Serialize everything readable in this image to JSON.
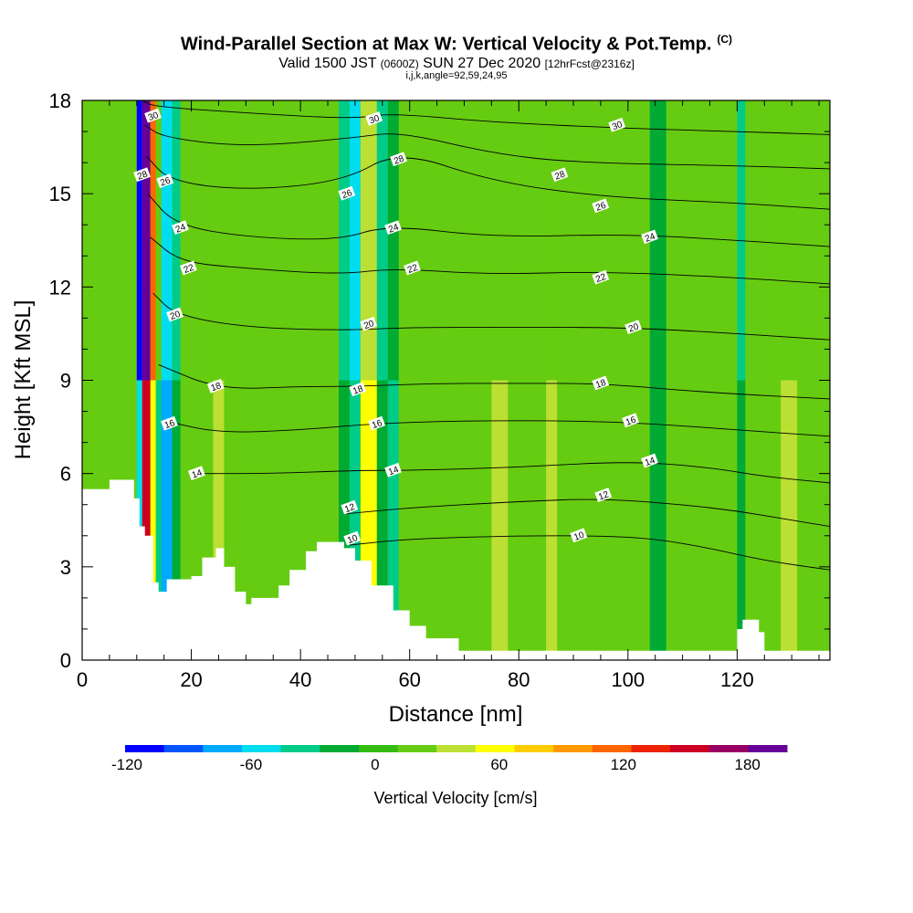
{
  "title": "Wind-Parallel Section at Max W: Vertical Velocity & Pot.Temp.",
  "title_tag": "(C)",
  "subtitle_main": "Valid 1500 JST",
  "subtitle_utc": "(0600Z)",
  "subtitle_date": "SUN 27 Dec 2020",
  "subtitle_fcst": "[12hrFcst@2316z]",
  "index_line": "i,j,k,angle=92,59,24,95",
  "colors": {
    "velocity_palette": [
      "#0000ff",
      "#0055ff",
      "#00aaff",
      "#00ddee",
      "#00cc88",
      "#00aa33",
      "#33bb11",
      "#66cc11",
      "#bbe033",
      "#ffff00",
      "#ffcc00",
      "#ff9900",
      "#ff6600",
      "#ee2200",
      "#cc0022",
      "#990066",
      "#660099"
    ],
    "terrain": "#ffffff",
    "contour": "#000000"
  },
  "chart_data": {
    "type": "heatmap",
    "xlabel": "Distance [nm]",
    "ylabel": "Height [Kft MSL]",
    "xlim": [
      0,
      137
    ],
    "ylim": [
      0,
      18
    ],
    "xticks": [
      "0",
      "20",
      "40",
      "60",
      "80",
      "100",
      "120"
    ],
    "xtick_values": [
      0,
      20,
      40,
      60,
      80,
      100,
      120
    ],
    "yticks": [
      "0",
      "3",
      "6",
      "9",
      "12",
      "15",
      "18"
    ],
    "ytick_values": [
      0,
      3,
      6,
      9,
      12,
      15,
      18
    ],
    "colorbar": {
      "title": "Vertical Velocity [cm/s]",
      "min": -120,
      "max": 200,
      "step": 20,
      "labels": [
        "-120",
        "-60",
        "0",
        "60",
        "120",
        "180"
      ],
      "label_values": [
        -120,
        -60,
        0,
        60,
        120,
        180
      ]
    },
    "background_value": 0,
    "velocity_bands": [
      {
        "x": [
          10,
          11
        ],
        "values": [
          -110,
          -60
        ]
      },
      {
        "x": [
          11,
          12.5
        ],
        "values": [
          200,
          160
        ]
      },
      {
        "x": [
          12.5,
          13.5
        ],
        "values": [
          120,
          60
        ]
      },
      {
        "x": [
          13.5,
          14.5
        ],
        "values": [
          20,
          -40
        ]
      },
      {
        "x": [
          14.5,
          16.5
        ],
        "values": [
          -60,
          -80
        ]
      },
      {
        "x": [
          16.5,
          18
        ],
        "values": [
          -40,
          -20
        ]
      },
      {
        "x": [
          47,
          49
        ],
        "values": [
          -40,
          -20
        ]
      },
      {
        "x": [
          49,
          51
        ],
        "values": [
          -60,
          -40
        ]
      },
      {
        "x": [
          51,
          54
        ],
        "values": [
          40,
          60
        ]
      },
      {
        "x": [
          54,
          56
        ],
        "values": [
          -40,
          -20
        ]
      },
      {
        "x": [
          56,
          58
        ],
        "values": [
          -20,
          -40
        ]
      },
      {
        "x": [
          120,
          121.5
        ],
        "values": [
          -40,
          -20
        ]
      },
      {
        "x": [
          24,
          26
        ],
        "values": [
          20,
          40
        ]
      },
      {
        "x": [
          75,
          78
        ],
        "values": [
          20,
          40
        ]
      },
      {
        "x": [
          85,
          87
        ],
        "values": [
          20,
          40
        ]
      },
      {
        "x": [
          104,
          107
        ],
        "values": [
          -20,
          -20
        ]
      },
      {
        "x": [
          128,
          131
        ],
        "values": [
          20,
          40
        ]
      }
    ],
    "terrain_profile": {
      "x": [
        0,
        5,
        5,
        9.5,
        9.5,
        10.5,
        10.5,
        11.5,
        11.5,
        13,
        13,
        14,
        14,
        15.5,
        15.5,
        17,
        17,
        20,
        20,
        22,
        22,
        24.5,
        24.5,
        26,
        26,
        28,
        28,
        30,
        30,
        31,
        31,
        36,
        36,
        38,
        38,
        41,
        41,
        43,
        43,
        48,
        48,
        50,
        50,
        53,
        53,
        57,
        57,
        60,
        60,
        63,
        63,
        69,
        69,
        120,
        120,
        121,
        121,
        124,
        124,
        125,
        125,
        137
      ],
      "y": [
        5.5,
        5.5,
        5.8,
        5.8,
        5.2,
        5.2,
        4.3,
        4.3,
        4,
        4,
        2.5,
        2.5,
        2.2,
        2.2,
        2.6,
        2.6,
        2.6,
        2.6,
        2.7,
        2.7,
        3.3,
        3.3,
        3.6,
        3.6,
        3.0,
        3.0,
        2.2,
        2.2,
        1.8,
        1.8,
        2.0,
        2.0,
        2.4,
        2.4,
        2.9,
        2.9,
        3.5,
        3.5,
        3.8,
        3.8,
        3.6,
        3.6,
        3.2,
        3.2,
        2.4,
        2.4,
        1.6,
        1.6,
        1.1,
        1.1,
        0.7,
        0.7,
        0.3,
        0.3,
        1.0,
        1.0,
        1.3,
        1.3,
        0.9,
        0.9,
        0.3,
        0.3
      ]
    },
    "theta_contours": [
      {
        "label": "10",
        "level": 10,
        "points": [
          [
            49,
            3.7
          ],
          [
            60,
            3.9
          ],
          [
            80,
            4.0
          ],
          [
            95,
            4.0
          ],
          [
            105,
            3.9
          ],
          [
            115,
            3.6
          ],
          [
            125,
            3.2
          ],
          [
            137,
            2.9
          ]
        ]
      },
      {
        "label": "12",
        "level": 12,
        "points": [
          [
            48,
            4.7
          ],
          [
            60,
            4.9
          ],
          [
            80,
            5.1
          ],
          [
            95,
            5.2
          ],
          [
            110,
            5.0
          ],
          [
            120,
            4.8
          ],
          [
            130,
            4.5
          ],
          [
            137,
            4.3
          ]
        ]
      },
      {
        "label": "14",
        "level": 14,
        "points": [
          [
            22,
            6.0
          ],
          [
            35,
            6.0
          ],
          [
            50,
            6.1
          ],
          [
            60,
            6.1
          ],
          [
            80,
            6.2
          ],
          [
            100,
            6.4
          ],
          [
            115,
            6.2
          ],
          [
            125,
            5.9
          ],
          [
            137,
            5.7
          ]
        ]
      },
      {
        "label": "16",
        "level": 16,
        "points": [
          [
            15,
            7.7
          ],
          [
            25,
            7.3
          ],
          [
            40,
            7.4
          ],
          [
            53,
            7.6
          ],
          [
            70,
            7.7
          ],
          [
            90,
            7.7
          ],
          [
            105,
            7.6
          ],
          [
            120,
            7.4
          ],
          [
            137,
            7.2
          ]
        ]
      },
      {
        "label": "18",
        "level": 18,
        "points": [
          [
            14,
            9.5
          ],
          [
            25,
            8.7
          ],
          [
            40,
            8.8
          ],
          [
            50,
            8.8
          ],
          [
            65,
            8.9
          ],
          [
            80,
            8.9
          ],
          [
            95,
            8.9
          ],
          [
            115,
            8.6
          ],
          [
            137,
            8.4
          ]
        ]
      },
      {
        "label": "20",
        "level": 20,
        "points": [
          [
            13,
            11.8
          ],
          [
            17,
            11.1
          ],
          [
            30,
            10.7
          ],
          [
            48,
            10.6
          ],
          [
            60,
            10.7
          ],
          [
            80,
            10.7
          ],
          [
            100,
            10.7
          ],
          [
            120,
            10.5
          ],
          [
            137,
            10.3
          ]
        ]
      },
      {
        "label": "22",
        "level": 22,
        "points": [
          [
            12.5,
            13.6
          ],
          [
            18,
            12.8
          ],
          [
            30,
            12.6
          ],
          [
            47,
            12.4
          ],
          [
            57,
            12.6
          ],
          [
            75,
            12.4
          ],
          [
            95,
            12.5
          ],
          [
            120,
            12.3
          ],
          [
            137,
            12.1
          ]
        ]
      },
      {
        "label": "24",
        "level": 24,
        "points": [
          [
            12,
            15.0
          ],
          [
            17,
            14.0
          ],
          [
            30,
            13.6
          ],
          [
            47,
            13.5
          ],
          [
            56,
            14.0
          ],
          [
            75,
            13.6
          ],
          [
            100,
            13.7
          ],
          [
            120,
            13.5
          ],
          [
            137,
            13.3
          ]
        ]
      },
      {
        "label": "26",
        "level": 26,
        "points": [
          [
            11.8,
            16.2
          ],
          [
            16,
            15.4
          ],
          [
            30,
            15.1
          ],
          [
            48,
            15.4
          ],
          [
            58,
            16.4
          ],
          [
            75,
            15.4
          ],
          [
            95,
            14.9
          ],
          [
            120,
            14.7
          ],
          [
            137,
            14.5
          ]
        ]
      },
      {
        "label": "28",
        "level": 28,
        "points": [
          [
            11.5,
            17.2
          ],
          [
            15,
            16.8
          ],
          [
            30,
            16.5
          ],
          [
            50,
            16.8
          ],
          [
            58,
            17.0
          ],
          [
            75,
            16.3
          ],
          [
            90,
            16.0
          ],
          [
            120,
            15.9
          ],
          [
            137,
            15.8
          ]
        ]
      },
      {
        "label": "30",
        "level": 30,
        "points": [
          [
            11,
            18.0
          ],
          [
            13,
            17.8
          ],
          [
            30,
            17.6
          ],
          [
            50,
            17.4
          ],
          [
            56,
            17.6
          ],
          [
            75,
            17.3
          ],
          [
            100,
            17.1
          ],
          [
            120,
            17.0
          ],
          [
            137,
            16.9
          ]
        ]
      }
    ],
    "contour_labels": [
      {
        "text": "30",
        "x": 13,
        "y": 17.5
      },
      {
        "text": "30",
        "x": 53.5,
        "y": 17.4
      },
      {
        "text": "30",
        "x": 98,
        "y": 17.2
      },
      {
        "text": "28",
        "x": 11,
        "y": 15.6
      },
      {
        "text": "26",
        "x": 15.2,
        "y": 15.4
      },
      {
        "text": "28",
        "x": 58,
        "y": 16.1
      },
      {
        "text": "26",
        "x": 48.5,
        "y": 15.0
      },
      {
        "text": "28",
        "x": 87.5,
        "y": 15.6
      },
      {
        "text": "26",
        "x": 95,
        "y": 14.6
      },
      {
        "text": "24",
        "x": 18,
        "y": 13.9
      },
      {
        "text": "24",
        "x": 57,
        "y": 13.9
      },
      {
        "text": "24",
        "x": 104,
        "y": 13.6
      },
      {
        "text": "22",
        "x": 19.5,
        "y": 12.6
      },
      {
        "text": "22",
        "x": 60.5,
        "y": 12.6
      },
      {
        "text": "22",
        "x": 95,
        "y": 12.3
      },
      {
        "text": "20",
        "x": 17,
        "y": 11.1
      },
      {
        "text": "20",
        "x": 52.5,
        "y": 10.8
      },
      {
        "text": "20",
        "x": 101,
        "y": 10.7
      },
      {
        "text": "18",
        "x": 24.5,
        "y": 8.8
      },
      {
        "text": "18",
        "x": 50.5,
        "y": 8.7
      },
      {
        "text": "18",
        "x": 95,
        "y": 8.9
      },
      {
        "text": "16",
        "x": 16,
        "y": 7.6
      },
      {
        "text": "16",
        "x": 54,
        "y": 7.6
      },
      {
        "text": "16",
        "x": 100.5,
        "y": 7.7
      },
      {
        "text": "14",
        "x": 21,
        "y": 6.0
      },
      {
        "text": "14",
        "x": 57,
        "y": 6.1
      },
      {
        "text": "14",
        "x": 104,
        "y": 6.4
      },
      {
        "text": "12",
        "x": 49,
        "y": 4.9
      },
      {
        "text": "12",
        "x": 95.5,
        "y": 5.3
      },
      {
        "text": "10",
        "x": 49.5,
        "y": 3.9
      },
      {
        "text": "10",
        "x": 91,
        "y": 4.0
      }
    ]
  }
}
